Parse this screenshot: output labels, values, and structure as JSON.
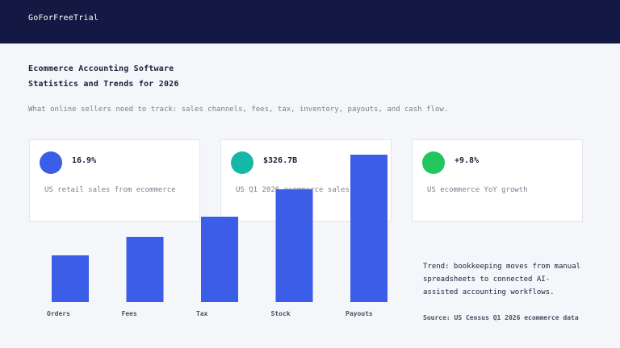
{
  "header": {
    "brand": "GoForFreeTrial"
  },
  "title_line1": "Ecommerce Accounting Software",
  "title_line2": "Statistics and Trends for 2026",
  "subtitle": "What online sellers need to track: sales channels, fees, tax, inventory, payouts, and cash flow.",
  "cards": [
    {
      "value": "16.9%",
      "label": "US retail sales from ecommerce",
      "color": "#3b5de7"
    },
    {
      "value": "$326.7B",
      "label": "US Q1 2026 ecommerce sales",
      "color": "#14b8a6"
    },
    {
      "value": "+9.8%",
      "label": "US ecommerce YoY growth",
      "color": "#22c55e"
    }
  ],
  "trend_text": "Trend: bookkeeping moves from manual spreadsheets to connected AI-assisted accounting workflows.",
  "source": "Source: US Census Q1 2026 ecommerce data",
  "chart_data": {
    "type": "bar",
    "categories": [
      "Orders",
      "Fees",
      "Tax",
      "Stock",
      "Payouts"
    ],
    "values": [
      58,
      81,
      106,
      140,
      183
    ],
    "ylim": [
      0,
      183
    ],
    "bar_color": "#3b5de7",
    "grid": false,
    "title": "",
    "xlabel": "",
    "ylabel": ""
  }
}
